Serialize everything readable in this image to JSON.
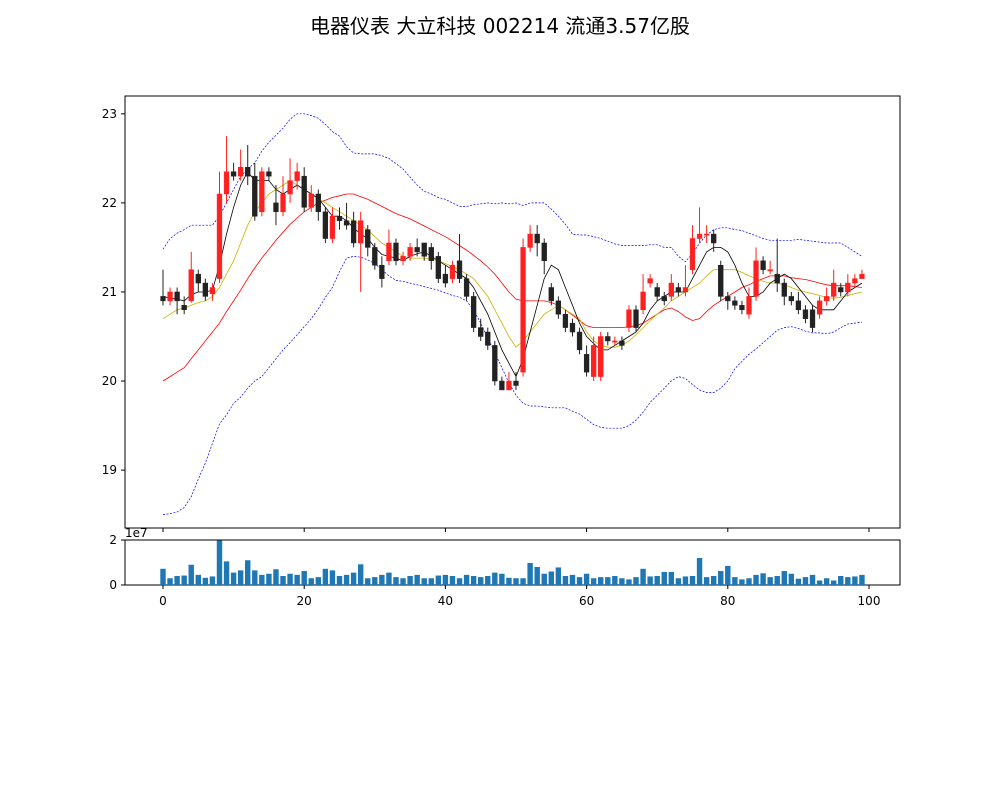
{
  "title": "电器仪表 大立科技 002214 流通3.57亿股",
  "chart_data": [
    {
      "type": "candlestick",
      "ylim": [
        18.35,
        23.2
      ],
      "xlim": [
        -5,
        104
      ],
      "yticks": [
        19,
        20,
        21,
        22,
        23
      ],
      "colors": {
        "up": "#ff2020",
        "down": "#222222",
        "ma5": "#000000",
        "ma10": "#c8b400",
        "ma20": "#ff0000",
        "boll": "#0000ff"
      },
      "candles": [
        [
          20.95,
          20.9,
          21.25,
          20.85
        ],
        [
          20.9,
          21.0,
          21.05,
          20.85
        ],
        [
          21.0,
          20.9,
          21.05,
          20.75
        ],
        [
          20.85,
          20.8,
          20.95,
          20.75
        ],
        [
          20.9,
          21.25,
          21.45,
          20.88
        ],
        [
          21.2,
          21.1,
          21.25,
          21.0
        ],
        [
          21.1,
          20.95,
          21.15,
          20.9
        ],
        [
          20.98,
          21.05,
          21.1,
          20.9
        ],
        [
          21.15,
          22.1,
          22.35,
          21.1
        ],
        [
          22.1,
          22.35,
          22.75,
          22.0
        ],
        [
          22.35,
          22.3,
          22.45,
          22.25
        ],
        [
          22.3,
          22.4,
          22.6,
          22.25
        ],
        [
          22.4,
          22.3,
          22.65,
          22.2
        ],
        [
          22.3,
          21.85,
          22.45,
          21.8
        ],
        [
          21.9,
          22.35,
          22.4,
          21.85
        ],
        [
          22.35,
          22.3,
          22.4,
          22.25
        ],
        [
          22.0,
          21.9,
          22.2,
          21.75
        ],
        [
          21.9,
          22.1,
          22.3,
          21.85
        ],
        [
          22.1,
          22.25,
          22.5,
          22.0
        ],
        [
          22.25,
          22.35,
          22.45,
          22.15
        ],
        [
          22.3,
          21.95,
          22.4,
          21.9
        ],
        [
          21.95,
          22.1,
          22.2,
          21.9
        ],
        [
          22.1,
          21.9,
          22.15,
          21.8
        ],
        [
          21.9,
          21.6,
          21.95,
          21.55
        ],
        [
          21.6,
          21.85,
          21.95,
          21.55
        ],
        [
          21.85,
          21.8,
          21.95,
          21.7
        ],
        [
          21.8,
          21.75,
          22.0,
          21.7
        ],
        [
          21.8,
          21.55,
          21.9,
          21.5
        ],
        [
          21.55,
          21.8,
          21.9,
          21.0
        ],
        [
          21.7,
          21.5,
          21.75,
          21.4
        ],
        [
          21.5,
          21.3,
          21.55,
          21.25
        ],
        [
          21.3,
          21.15,
          21.4,
          21.05
        ],
        [
          21.35,
          21.55,
          21.7,
          21.3
        ],
        [
          21.55,
          21.35,
          21.6,
          21.3
        ],
        [
          21.35,
          21.4,
          21.45,
          21.3
        ],
        [
          21.4,
          21.5,
          21.55,
          21.35
        ],
        [
          21.5,
          21.45,
          21.6,
          21.4
        ],
        [
          21.55,
          21.4,
          21.55,
          21.35
        ],
        [
          21.5,
          21.35,
          21.55,
          21.25
        ],
        [
          21.4,
          21.15,
          21.45,
          21.1
        ],
        [
          21.2,
          21.1,
          21.3,
          21.05
        ],
        [
          21.15,
          21.3,
          21.35,
          21.1
        ],
        [
          21.35,
          21.15,
          21.65,
          21.1
        ],
        [
          21.15,
          20.95,
          21.2,
          20.9
        ],
        [
          20.95,
          20.6,
          21.0,
          20.55
        ],
        [
          20.6,
          20.5,
          20.7,
          20.45
        ],
        [
          20.55,
          20.4,
          20.6,
          20.35
        ],
        [
          20.4,
          20.0,
          20.45,
          19.95
        ],
        [
          20.0,
          19.9,
          20.05,
          19.9
        ],
        [
          19.9,
          20.0,
          20.1,
          19.9
        ],
        [
          20.0,
          19.95,
          20.1,
          19.9
        ],
        [
          20.1,
          21.5,
          21.6,
          20.05
        ],
        [
          21.5,
          21.65,
          21.75,
          21.45
        ],
        [
          21.65,
          21.55,
          21.75,
          21.4
        ],
        [
          21.55,
          21.35,
          21.6,
          21.2
        ],
        [
          21.05,
          20.9,
          21.1,
          20.85
        ],
        [
          20.9,
          20.75,
          20.95,
          20.7
        ],
        [
          20.75,
          20.6,
          20.8,
          20.55
        ],
        [
          20.65,
          20.55,
          20.7,
          20.5
        ],
        [
          20.55,
          20.35,
          20.6,
          20.3
        ],
        [
          20.3,
          20.1,
          20.4,
          20.05
        ],
        [
          20.05,
          20.4,
          20.5,
          20.0
        ],
        [
          20.05,
          20.5,
          20.55,
          20.0
        ],
        [
          20.5,
          20.45,
          20.55,
          20.4
        ],
        [
          20.45,
          20.45,
          20.5,
          20.4
        ],
        [
          20.45,
          20.4,
          20.5,
          20.35
        ],
        [
          20.6,
          20.8,
          20.85,
          20.55
        ],
        [
          20.8,
          20.6,
          20.85,
          20.55
        ],
        [
          20.8,
          21.0,
          21.2,
          20.75
        ],
        [
          21.1,
          21.15,
          21.2,
          21.05
        ],
        [
          21.05,
          20.95,
          21.1,
          20.9
        ],
        [
          20.95,
          20.9,
          21.0,
          20.85
        ],
        [
          20.95,
          21.1,
          21.2,
          20.9
        ],
        [
          21.05,
          21.0,
          21.1,
          20.95
        ],
        [
          21.0,
          21.05,
          21.3,
          20.95
        ],
        [
          21.25,
          21.6,
          21.75,
          21.2
        ],
        [
          21.6,
          21.65,
          21.95,
          21.55
        ],
        [
          21.65,
          21.65,
          21.75,
          21.55
        ],
        [
          21.65,
          21.55,
          21.7,
          21.45
        ],
        [
          21.3,
          20.95,
          21.35,
          20.9
        ],
        [
          20.95,
          20.9,
          21.0,
          20.8
        ],
        [
          20.9,
          20.85,
          20.95,
          20.8
        ],
        [
          20.85,
          20.8,
          20.9,
          20.75
        ],
        [
          20.75,
          20.95,
          21.05,
          20.7
        ],
        [
          20.95,
          21.35,
          21.5,
          20.9
        ],
        [
          21.35,
          21.25,
          21.4,
          21.2
        ],
        [
          21.25,
          21.25,
          21.35,
          21.2
        ],
        [
          21.2,
          21.1,
          21.6,
          21.0
        ],
        [
          21.1,
          20.95,
          21.15,
          20.85
        ],
        [
          20.95,
          20.9,
          21.0,
          20.85
        ],
        [
          20.9,
          20.8,
          21.0,
          20.75
        ],
        [
          20.8,
          20.7,
          20.85,
          20.65
        ],
        [
          20.8,
          20.6,
          20.85,
          20.55
        ],
        [
          20.75,
          20.9,
          20.95,
          20.7
        ],
        [
          20.9,
          20.95,
          21.05,
          20.85
        ],
        [
          20.95,
          21.1,
          21.25,
          20.9
        ],
        [
          21.05,
          21.0,
          21.1,
          20.95
        ],
        [
          21.0,
          21.1,
          21.2,
          20.95
        ],
        [
          21.1,
          21.15,
          21.2,
          21.05
        ],
        [
          21.15,
          21.2,
          21.25,
          21.15
        ]
      ],
      "bb_upper": [
        21.48,
        21.6,
        21.66,
        21.7,
        21.75,
        21.75,
        21.75,
        21.75,
        21.85,
        22.0,
        22.15,
        22.3,
        22.38,
        22.45,
        22.58,
        22.68,
        22.76,
        22.84,
        22.94,
        23.0,
        23.0,
        22.98,
        22.95,
        22.88,
        22.8,
        22.75,
        22.63,
        22.56,
        22.55,
        22.55,
        22.55,
        22.53,
        22.5,
        22.44,
        22.38,
        22.29,
        22.2,
        22.13,
        22.1,
        22.06,
        22.04,
        22.0,
        21.96,
        21.96,
        21.98,
        21.99,
        22.0,
        21.99,
        22.0,
        21.99,
        22.0,
        21.97,
        22.0,
        22.0,
        22.0,
        21.93,
        21.85,
        21.76,
        21.65,
        21.64,
        21.64,
        21.62,
        21.6,
        21.57,
        21.54,
        21.52,
        21.52,
        21.52,
        21.52,
        21.53,
        21.53,
        21.5,
        21.5,
        21.4,
        21.34,
        21.43,
        21.55,
        21.64,
        21.7,
        21.72,
        21.72,
        21.7,
        21.69,
        21.66,
        21.63,
        21.6,
        21.58,
        21.58,
        21.58,
        21.58,
        21.59,
        21.58,
        21.57,
        21.56,
        21.55,
        21.55,
        21.55,
        21.5,
        21.45,
        21.4
      ],
      "bb_lower": [
        18.5,
        18.51,
        18.53,
        18.58,
        18.7,
        18.9,
        19.08,
        19.3,
        19.52,
        19.62,
        19.75,
        19.82,
        19.92,
        20.0,
        20.05,
        20.15,
        20.25,
        20.35,
        20.43,
        20.52,
        20.61,
        20.7,
        20.81,
        20.94,
        21.05,
        21.23,
        21.38,
        21.4,
        21.39,
        21.36,
        21.32,
        21.25,
        21.18,
        21.13,
        21.12,
        21.1,
        21.08,
        21.06,
        21.04,
        21.02,
        20.99,
        20.96,
        20.94,
        20.9,
        20.8,
        20.65,
        20.48,
        20.32,
        20.15,
        19.98,
        19.84,
        19.75,
        19.72,
        19.72,
        19.71,
        19.7,
        19.7,
        19.7,
        19.66,
        19.63,
        19.57,
        19.51,
        19.48,
        19.47,
        19.47,
        19.47,
        19.5,
        19.56,
        19.65,
        19.76,
        19.84,
        19.92,
        20.0,
        20.05,
        20.03,
        19.96,
        19.9,
        19.87,
        19.87,
        19.92,
        20.0,
        20.14,
        20.22,
        20.3,
        20.36,
        20.43,
        20.5,
        20.57,
        20.6,
        20.61,
        20.59,
        20.56,
        20.54,
        20.54,
        20.53,
        20.55,
        20.6,
        20.64,
        20.65,
        20.66
      ],
      "ma5": [
        20.95,
        20.93,
        20.92,
        20.9,
        20.97,
        21.0,
        21.0,
        21.02,
        21.3,
        21.65,
        21.95,
        22.2,
        22.35,
        22.25,
        22.25,
        22.25,
        22.15,
        22.1,
        22.15,
        22.2,
        22.15,
        22.1,
        22.05,
        21.95,
        21.85,
        21.85,
        21.8,
        21.72,
        21.65,
        21.6,
        21.5,
        21.42,
        21.4,
        21.38,
        21.35,
        21.4,
        21.43,
        21.45,
        21.4,
        21.35,
        21.3,
        21.25,
        21.2,
        21.15,
        21.05,
        20.9,
        20.75,
        20.55,
        20.35,
        20.2,
        20.05,
        20.25,
        20.55,
        20.85,
        21.15,
        21.3,
        21.25,
        21.05,
        20.85,
        20.65,
        20.5,
        20.42,
        20.35,
        20.35,
        20.4,
        20.45,
        20.5,
        20.55,
        20.65,
        20.8,
        20.9,
        20.95,
        21.0,
        21.0,
        21.0,
        21.15,
        21.3,
        21.45,
        21.5,
        21.5,
        21.45,
        21.3,
        21.1,
        20.95,
        20.95,
        21.0,
        21.1,
        21.15,
        21.2,
        21.15,
        21.05,
        20.95,
        20.85,
        20.8,
        20.8,
        20.8,
        20.9,
        21.0,
        21.05,
        21.1
      ],
      "ma10": [
        20.7,
        20.75,
        20.8,
        20.82,
        20.85,
        20.88,
        20.9,
        20.95,
        21.05,
        21.2,
        21.35,
        21.55,
        21.75,
        21.9,
        22.0,
        22.1,
        22.15,
        22.2,
        22.25,
        22.2,
        22.15,
        22.1,
        22.05,
        22.0,
        21.95,
        21.9,
        21.85,
        21.8,
        21.75,
        21.7,
        21.62,
        21.55,
        21.5,
        21.45,
        21.4,
        21.38,
        21.38,
        21.38,
        21.37,
        21.35,
        21.32,
        21.28,
        21.25,
        21.2,
        21.15,
        21.05,
        20.95,
        20.8,
        20.65,
        20.5,
        20.38,
        20.45,
        20.55,
        20.65,
        20.75,
        20.8,
        20.85,
        20.8,
        20.75,
        20.7,
        20.55,
        20.45,
        20.4,
        20.38,
        20.38,
        20.4,
        20.45,
        20.52,
        20.6,
        20.68,
        20.75,
        20.82,
        20.9,
        20.95,
        21.0,
        21.05,
        21.1,
        21.18,
        21.25,
        21.25,
        21.25,
        21.25,
        21.22,
        21.18,
        21.15,
        21.12,
        21.1,
        21.1,
        21.08,
        21.05,
        21.02,
        21.0,
        20.98,
        20.96,
        20.94,
        20.93,
        20.94,
        20.96,
        20.98,
        21.0
      ],
      "ma20": [
        20.0,
        20.05,
        20.1,
        20.15,
        20.25,
        20.35,
        20.45,
        20.55,
        20.65,
        20.78,
        20.9,
        21.02,
        21.15,
        21.27,
        21.38,
        21.48,
        21.58,
        21.67,
        21.76,
        21.83,
        21.9,
        21.95,
        22.0,
        22.03,
        22.06,
        22.08,
        22.1,
        22.1,
        22.07,
        22.04,
        22.0,
        21.96,
        21.92,
        21.88,
        21.85,
        21.82,
        21.78,
        21.74,
        21.7,
        21.66,
        21.62,
        21.57,
        21.52,
        21.47,
        21.41,
        21.35,
        21.28,
        21.2,
        21.1,
        21.0,
        20.92,
        20.9,
        20.9,
        20.9,
        20.9,
        20.88,
        20.85,
        20.8,
        20.74,
        20.68,
        20.62,
        20.6,
        20.6,
        20.6,
        20.6,
        20.6,
        20.61,
        20.62,
        20.65,
        20.7,
        20.75,
        20.8,
        20.82,
        20.78,
        20.72,
        20.68,
        20.7,
        20.78,
        20.85,
        20.9,
        20.95,
        21.0,
        21.05,
        21.08,
        21.12,
        21.15,
        21.18,
        21.18,
        21.18,
        21.16,
        21.15,
        21.14,
        21.12,
        21.1,
        21.08,
        21.07,
        21.07,
        21.07,
        21.06,
        21.05
      ]
    },
    {
      "type": "bar",
      "ylim": [
        0,
        2.0
      ],
      "yticks": [
        0,
        2
      ],
      "xticks": [
        0,
        20,
        40,
        60,
        80,
        100
      ],
      "offset_text": "1e7",
      "color": "#1f77b4",
      "values": [
        0.72,
        0.3,
        0.4,
        0.42,
        0.9,
        0.45,
        0.32,
        0.38,
        1.98,
        1.05,
        0.55,
        0.65,
        1.1,
        0.65,
        0.45,
        0.5,
        0.7,
        0.4,
        0.5,
        0.45,
        0.62,
        0.3,
        0.35,
        0.72,
        0.65,
        0.4,
        0.45,
        0.55,
        0.92,
        0.3,
        0.35,
        0.45,
        0.55,
        0.35,
        0.3,
        0.4,
        0.45,
        0.3,
        0.3,
        0.42,
        0.45,
        0.4,
        0.3,
        0.45,
        0.4,
        0.35,
        0.4,
        0.55,
        0.5,
        0.32,
        0.3,
        0.3,
        0.98,
        0.8,
        0.5,
        0.6,
        0.78,
        0.4,
        0.45,
        0.35,
        0.5,
        0.3,
        0.35,
        0.35,
        0.4,
        0.3,
        0.25,
        0.35,
        0.72,
        0.38,
        0.4,
        0.58,
        0.58,
        0.3,
        0.38,
        0.4,
        1.2,
        0.35,
        0.4,
        0.62,
        0.85,
        0.35,
        0.25,
        0.3,
        0.45,
        0.52,
        0.35,
        0.4,
        0.62,
        0.5,
        0.28,
        0.35,
        0.45,
        0.2,
        0.3,
        0.2,
        0.4,
        0.35,
        0.38,
        0.45
      ]
    }
  ]
}
